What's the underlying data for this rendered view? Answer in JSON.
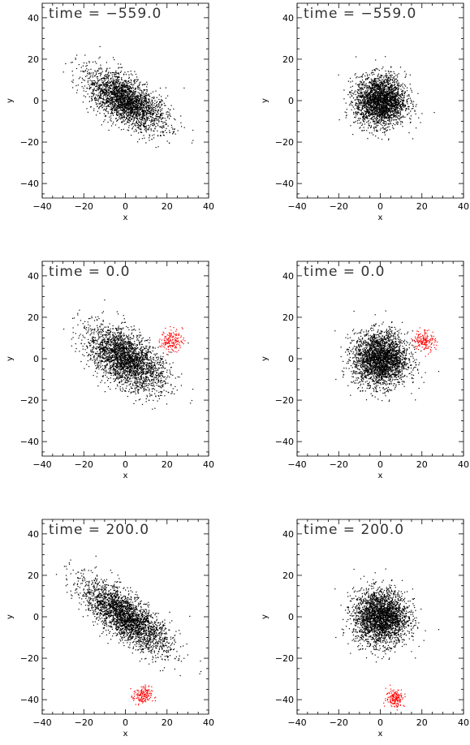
{
  "chart_data": [
    {
      "type": "scatter",
      "title": "time = −559.0",
      "xlabel": "x",
      "ylabel": "y",
      "xlim": [
        -40,
        40
      ],
      "ylim": [
        -47,
        47
      ],
      "xticks": [
        "−40",
        "−20",
        "0",
        "20",
        "40"
      ],
      "yticks": [
        "−40",
        "−20",
        "0",
        "20",
        "40"
      ],
      "series": [
        {
          "color": "#000000",
          "center": [
            0,
            0
          ],
          "spread": [
            10.5,
            4.8
          ],
          "tilt_deg": -33,
          "count": 2600
        }
      ]
    },
    {
      "type": "scatter",
      "title": "time = −559.0",
      "xlabel": "x",
      "ylabel": "y",
      "xlim": [
        -40,
        40
      ],
      "ylim": [
        -47,
        47
      ],
      "xticks": [
        "−40",
        "−20",
        "0",
        "20",
        "40"
      ],
      "yticks": [
        "−40",
        "−20",
        "0",
        "20",
        "40"
      ],
      "series": [
        {
          "color": "#000000",
          "center": [
            0,
            0
          ],
          "spread": [
            6.0,
            6.0
          ],
          "tilt_deg": 0,
          "count": 2600
        }
      ]
    },
    {
      "type": "scatter",
      "title": "time = 0.0",
      "xlabel": "x",
      "ylabel": "y",
      "xlim": [
        -40,
        40
      ],
      "ylim": [
        -47,
        47
      ],
      "xticks": [
        "−40",
        "−20",
        "0",
        "20",
        "40"
      ],
      "yticks": [
        "−40",
        "−20",
        "0",
        "20",
        "40"
      ],
      "series": [
        {
          "color": "#000000",
          "center": [
            0,
            0
          ],
          "spread": [
            10.5,
            5.5
          ],
          "tilt_deg": -35,
          "count": 2700
        },
        {
          "color": "#ff0000",
          "center": [
            22,
            9
          ],
          "spread": [
            2.6,
            2.6
          ],
          "tilt_deg": 0,
          "count": 160
        }
      ]
    },
    {
      "type": "scatter",
      "title": "time = 0.0",
      "xlabel": "x",
      "ylabel": "y",
      "xlim": [
        -40,
        40
      ],
      "ylim": [
        -47,
        47
      ],
      "xticks": [
        "−40",
        "−20",
        "0",
        "20",
        "40"
      ],
      "yticks": [
        "−40",
        "−20",
        "0",
        "20",
        "40"
      ],
      "series": [
        {
          "color": "#000000",
          "center": [
            0,
            0
          ],
          "spread": [
            6.5,
            6.5
          ],
          "tilt_deg": 0,
          "count": 2700
        },
        {
          "color": "#ff0000",
          "center": [
            21,
            9
          ],
          "spread": [
            2.6,
            2.6
          ],
          "tilt_deg": 0,
          "count": 160
        }
      ]
    },
    {
      "type": "scatter",
      "title": "time = 200.0",
      "xlabel": "x",
      "ylabel": "y",
      "xlim": [
        -40,
        40
      ],
      "ylim": [
        -47,
        47
      ],
      "xticks": [
        "−40",
        "−20",
        "0",
        "20",
        "40"
      ],
      "yticks": [
        "−40",
        "−20",
        "0",
        "20",
        "40"
      ],
      "series": [
        {
          "color": "#000000",
          "center": [
            0,
            0
          ],
          "spread": [
            12.5,
            4.5
          ],
          "tilt_deg": -38,
          "count": 2700
        },
        {
          "color": "#ff0000",
          "center": [
            8,
            -38
          ],
          "spread": [
            2.2,
            2.2
          ],
          "tilt_deg": 0,
          "count": 160
        }
      ]
    },
    {
      "type": "scatter",
      "title": "time = 200.0",
      "xlabel": "x",
      "ylabel": "y",
      "xlim": [
        -40,
        40
      ],
      "ylim": [
        -47,
        47
      ],
      "xticks": [
        "−40",
        "−20",
        "0",
        "20",
        "40"
      ],
      "yticks": [
        "−40",
        "−20",
        "0",
        "20",
        "40"
      ],
      "series": [
        {
          "color": "#000000",
          "center": [
            0,
            0
          ],
          "spread": [
            6.5,
            6.5
          ],
          "tilt_deg": 0,
          "count": 2700
        },
        {
          "color": "#ff0000",
          "center": [
            7,
            -39
          ],
          "spread": [
            2.2,
            2.2
          ],
          "tilt_deg": 0,
          "count": 160
        }
      ]
    }
  ]
}
